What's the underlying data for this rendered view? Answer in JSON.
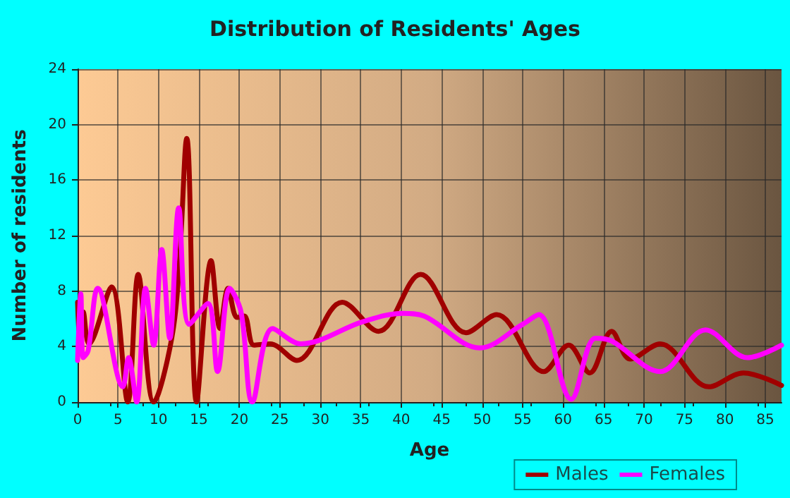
{
  "chart_data": {
    "type": "line",
    "title": "Distribution of Residents' Ages",
    "xlabel": "Age",
    "ylabel": "Number of residents",
    "xlim": [
      0,
      87
    ],
    "xticks": [
      0,
      5,
      10,
      15,
      20,
      25,
      30,
      35,
      40,
      45,
      50,
      55,
      60,
      65,
      70,
      75,
      80,
      85
    ],
    "ylim": [
      0,
      24
    ],
    "yticks": [
      0,
      4,
      8,
      12,
      16,
      20,
      24
    ],
    "grid": true,
    "legend": "bottom right",
    "marker": "none",
    "line_style": "solid",
    "series": [
      {
        "name": "Males",
        "color": "#a00000",
        "x": [
          0,
          0.3,
          0.7,
          1.4,
          4.2,
          6.2,
          7.5,
          9.4,
          12,
          13.5,
          14.7,
          16.5,
          17.6,
          18.6,
          19.7,
          20.6,
          21.8,
          23.8,
          27.1,
          32.7,
          37.2,
          42.4,
          48,
          51.8,
          57.6,
          60.7,
          63.3,
          66,
          68.3,
          72,
          78,
          82.3,
          87
        ],
        "values": [
          7.2,
          4.3,
          6.5,
          4.2,
          8.3,
          0,
          9.2,
          0,
          6,
          19,
          0,
          10.2,
          5.3,
          8.2,
          6.1,
          6.2,
          4.1,
          4.2,
          3,
          7.2,
          5.1,
          9.2,
          5,
          6.3,
          2.2,
          4.1,
          2.1,
          5.1,
          3.1,
          4.2,
          1.1,
          2.1,
          1.2
        ]
      },
      {
        "name": "Females",
        "color": "#ff00ff",
        "x": [
          0,
          0.4,
          0.7,
          1.3,
          2.5,
          5.6,
          6.3,
          7.3,
          8.4,
          9.4,
          10.4,
          11.4,
          12.5,
          13.8,
          16.1,
          17.3,
          18.8,
          20.2,
          21.6,
          24.1,
          27.6,
          35.3,
          40.2,
          42.8,
          49.7,
          55,
          57,
          61,
          64,
          66,
          72,
          77.6,
          82.8,
          87
        ],
        "values": [
          3,
          7.8,
          3.2,
          3.7,
          8.2,
          1.1,
          3.2,
          0,
          8.2,
          4.1,
          11,
          4.6,
          14,
          5.6,
          7.1,
          2.2,
          8.2,
          6.5,
          0,
          5.3,
          4.2,
          5.8,
          6.4,
          6.2,
          3.9,
          5.6,
          6.3,
          0.2,
          4.6,
          4.4,
          2.2,
          5.2,
          3.2,
          4.1
        ]
      }
    ]
  }
}
